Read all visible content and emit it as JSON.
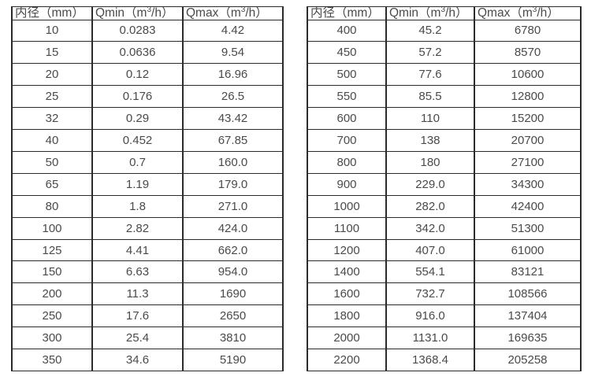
{
  "colors": {
    "background": "#ffffff",
    "border": "#2b2b2b",
    "text": "#4a4a4a"
  },
  "tables": [
    {
      "name": "small-diameter-flow-rates",
      "headers": [
        "内径（mm）",
        "Qmin（m³/h）",
        "Qmax（m³/h）"
      ],
      "rows": [
        [
          "10",
          "0.0283",
          "4.42"
        ],
        [
          "15",
          "0.0636",
          "9.54"
        ],
        [
          "20",
          "0.12",
          "16.96"
        ],
        [
          "25",
          "0.176",
          "26.5"
        ],
        [
          "32",
          "0.29",
          "43.42"
        ],
        [
          "40",
          "0.452",
          "67.85"
        ],
        [
          "50",
          "0.7",
          "160.0"
        ],
        [
          "65",
          "1.19",
          "179.0"
        ],
        [
          "80",
          "1.8",
          "271.0"
        ],
        [
          "100",
          "2.82",
          "424.0"
        ],
        [
          "125",
          "4.41",
          "662.0"
        ],
        [
          "150",
          "6.63",
          "954.0"
        ],
        [
          "200",
          "11.3",
          "1690"
        ],
        [
          "250",
          "17.6",
          "2650"
        ],
        [
          "300",
          "25.4",
          "3810"
        ],
        [
          "350",
          "34.6",
          "5190"
        ]
      ]
    },
    {
      "name": "large-diameter-flow-rates",
      "headers": [
        "内径（mm）",
        "Qmin（m³/h）",
        "Qmax（m³/h）"
      ],
      "rows": [
        [
          "400",
          "45.2",
          "6780"
        ],
        [
          "450",
          "57.2",
          "8570"
        ],
        [
          "500",
          "77.6",
          "10600"
        ],
        [
          "550",
          "85.5",
          "12800"
        ],
        [
          "600",
          "110",
          "15200"
        ],
        [
          "700",
          "138",
          "20700"
        ],
        [
          "800",
          "180",
          "27100"
        ],
        [
          "900",
          "229.0",
          "34300"
        ],
        [
          "1000",
          "282.0",
          "42400"
        ],
        [
          "1100",
          "342.0",
          "51300"
        ],
        [
          "1200",
          "407.0",
          "61000"
        ],
        [
          "1400",
          "554.1",
          "83121"
        ],
        [
          "1600",
          "732.7",
          "108566"
        ],
        [
          "1800",
          "916.0",
          "137404"
        ],
        [
          "2000",
          "1131.0",
          "169635"
        ],
        [
          "2200",
          "1368.4",
          "205258"
        ]
      ]
    }
  ]
}
